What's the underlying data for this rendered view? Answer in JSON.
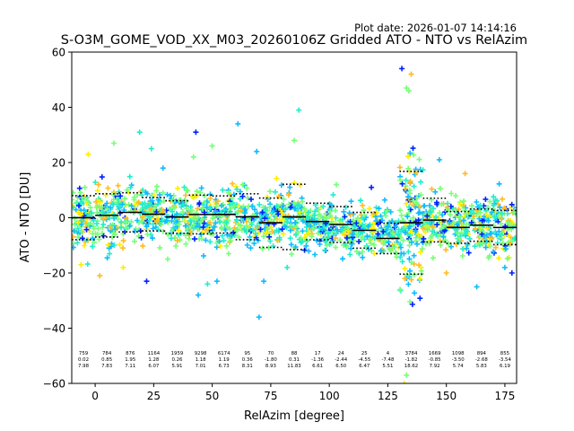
{
  "plot_date": "Plot date: 2026-01-07 14:14:16",
  "chart_data": {
    "type": "scatter",
    "title": "S-O3M_GOME_VOD_XX_M03_20260106Z Gridded ATO - NTO vs RelAzim",
    "xlabel": "RelAzim [degree]",
    "ylabel": "ATO - NTO [DU]",
    "xlim": [
      -10,
      180
    ],
    "ylim": [
      -60,
      60
    ],
    "xticks": [
      0,
      25,
      50,
      75,
      100,
      125,
      150,
      175
    ],
    "yticks": [
      -60,
      -40,
      -20,
      0,
      20,
      40,
      60
    ],
    "grid": false,
    "marker": "+",
    "colors": {
      "blue": "#0022ff",
      "cyan": "#11bbff",
      "aqua": "#22eecc",
      "green": "#77ff77",
      "yellow": "#ffee00",
      "orange": "#ffbb22",
      "mean_line": "#000000",
      "axis": "#000000"
    },
    "scatter_bins": [
      {
        "x": [
          -10,
          5
        ],
        "mean": 0.2,
        "spread": 8.0,
        "outliers": [
          [
            -3,
            23
          ],
          [
            2,
            -21
          ],
          [
            -6,
            -17
          ]
        ]
      },
      {
        "x": [
          5,
          15
        ],
        "mean": 1.2,
        "spread": 8.0,
        "outliers": [
          [
            8,
            27
          ],
          [
            12,
            -18
          ]
        ]
      },
      {
        "x": [
          15,
          25
        ],
        "mean": 1.5,
        "spread": 7.0,
        "outliers": [
          [
            19,
            31
          ],
          [
            22,
            -23
          ],
          [
            24,
            25
          ]
        ]
      },
      {
        "x": [
          25,
          35
        ],
        "mean": 0.8,
        "spread": 6.0,
        "outliers": [
          [
            31,
            -15
          ],
          [
            29,
            18
          ]
        ]
      },
      {
        "x": [
          35,
          45
        ],
        "mean": 1.0,
        "spread": 7.0,
        "outliers": [
          [
            43,
            31
          ],
          [
            44,
            -28
          ],
          [
            42,
            22
          ]
        ]
      },
      {
        "x": [
          45,
          53
        ],
        "mean": 1.5,
        "spread": 8.0,
        "outliers": [
          [
            50,
            26
          ],
          [
            48,
            -24
          ],
          [
            52,
            -23
          ]
        ]
      },
      {
        "x": [
          53,
          65
        ],
        "mean": 0.5,
        "spread": 6.0,
        "outliers": [
          [
            61,
            34
          ],
          [
            57,
            -13
          ],
          [
            63,
            12
          ]
        ]
      },
      {
        "x": [
          65,
          75
        ],
        "mean": -1.5,
        "spread": 6.0,
        "outliers": [
          [
            70,
            -36
          ],
          [
            72,
            -23
          ],
          [
            69,
            24
          ]
        ]
      },
      {
        "x": [
          75,
          90
        ],
        "mean": -0.5,
        "spread": 8.0,
        "outliers": [
          [
            87,
            39
          ],
          [
            82,
            -18
          ],
          [
            85,
            28
          ]
        ]
      },
      {
        "x": [
          90,
          105
        ],
        "mean": -2.0,
        "spread": 6.0,
        "outliers": [
          [
            99,
            -10
          ],
          [
            103,
            12
          ]
        ]
      },
      {
        "x": [
          105,
          125
        ],
        "mean": -5.0,
        "spread": 6.0,
        "outliers": [
          [
            118,
            11
          ],
          [
            122,
            -12
          ]
        ]
      },
      {
        "x": [
          125,
          130
        ],
        "mean": -7.0,
        "spread": 5.0,
        "outliers": []
      },
      {
        "x": [
          130,
          140
        ],
        "mean": -1.5,
        "spread": 18.0,
        "outliers": [
          [
            131,
            54
          ],
          [
            135,
            52
          ],
          [
            133,
            47
          ],
          [
            134,
            46
          ],
          [
            132,
            -60
          ],
          [
            133,
            -57
          ]
        ]
      },
      {
        "x": [
          140,
          155
        ],
        "mean": -1.0,
        "spread": 7.0,
        "outliers": [
          [
            147,
            21
          ],
          [
            150,
            -20
          ]
        ]
      },
      {
        "x": [
          155,
          180
        ],
        "mean": -3.0,
        "spread": 7.0,
        "outliers": [
          [
            163,
            -25
          ],
          [
            158,
            16
          ],
          [
            175,
            -18
          ],
          [
            178,
            -20
          ]
        ]
      }
    ],
    "mean_segments": [
      {
        "x": [
          -10,
          0
        ],
        "mean": 0.02,
        "std": 7.98
      },
      {
        "x": [
          0,
          10
        ],
        "mean": 0.85,
        "std": 7.83
      },
      {
        "x": [
          10,
          20
        ],
        "mean": 1.95,
        "std": 7.11
      },
      {
        "x": [
          20,
          30
        ],
        "mean": 1.28,
        "std": 6.07
      },
      {
        "x": [
          30,
          40
        ],
        "mean": 0.26,
        "std": 5.91
      },
      {
        "x": [
          40,
          50
        ],
        "mean": 1.18,
        "std": 7.01
      },
      {
        "x": [
          50,
          60
        ],
        "mean": 1.19,
        "std": 6.73
      },
      {
        "x": [
          60,
          70
        ],
        "mean": 0.36,
        "std": 8.31
      },
      {
        "x": [
          70,
          80
        ],
        "mean": -1.8,
        "std": 8.93
      },
      {
        "x": [
          80,
          90
        ],
        "mean": 0.31,
        "std": 11.83
      },
      {
        "x": [
          90,
          100
        ],
        "mean": -1.36,
        "std": 6.61
      },
      {
        "x": [
          100,
          110
        ],
        "mean": -2.44,
        "std": 6.5
      },
      {
        "x": [
          110,
          120
        ],
        "mean": -4.55,
        "std": 6.47
      },
      {
        "x": [
          120,
          130
        ],
        "mean": -7.48,
        "std": 5.51
      },
      {
        "x": [
          130,
          140
        ],
        "mean": -1.82,
        "std": 18.62
      },
      {
        "x": [
          140,
          150
        ],
        "mean": -0.85,
        "std": 7.92
      },
      {
        "x": [
          150,
          160
        ],
        "mean": -3.5,
        "std": 5.74
      },
      {
        "x": [
          160,
          170
        ],
        "mean": -2.68,
        "std": 5.83
      },
      {
        "x": [
          170,
          180
        ],
        "mean": -3.54,
        "std": 6.19
      }
    ],
    "bin_stats": [
      {
        "x": -5,
        "count": "759",
        "mean": "0.02",
        "std": "7.98"
      },
      {
        "x": 5,
        "count": "784",
        "mean": "0.85",
        "std": "7.83"
      },
      {
        "x": 15,
        "count": "876",
        "mean": "1.95",
        "std": "7.11"
      },
      {
        "x": 25,
        "count": "1164",
        "mean": "1.28",
        "std": "6.07"
      },
      {
        "x": 35,
        "count": "1959",
        "mean": "0.26",
        "std": "5.91"
      },
      {
        "x": 45,
        "count": "9298",
        "mean": "1.18",
        "std": "7.01"
      },
      {
        "x": 55,
        "count": "6174",
        "mean": "1.19",
        "std": "6.73"
      },
      {
        "x": 65,
        "count": "95",
        "mean": "0.36",
        "std": "8.31"
      },
      {
        "x": 75,
        "count": "70",
        "mean": "-1.80",
        "std": "8.93"
      },
      {
        "x": 85,
        "count": "88",
        "mean": "0.31",
        "std": "11.83"
      },
      {
        "x": 95,
        "count": "17",
        "mean": "-1.36",
        "std": "6.61"
      },
      {
        "x": 105,
        "count": "24",
        "mean": "-2.44",
        "std": "6.50"
      },
      {
        "x": 115,
        "count": "25",
        "mean": "-4.55",
        "std": "6.47"
      },
      {
        "x": 125,
        "count": "4",
        "mean": "-7.48",
        "std": "5.51"
      },
      {
        "x": 135,
        "count": "3784",
        "mean": "-1.82",
        "std": "18.62"
      },
      {
        "x": 145,
        "count": "1669",
        "mean": "-0.85",
        "std": "7.92"
      },
      {
        "x": 155,
        "count": "1098",
        "mean": "-3.50",
        "std": "5.74"
      },
      {
        "x": 165,
        "count": "894",
        "mean": "-2.68",
        "std": "5.83"
      },
      {
        "x": 175,
        "count": "855",
        "mean": "-3.54",
        "std": "6.19"
      }
    ]
  }
}
